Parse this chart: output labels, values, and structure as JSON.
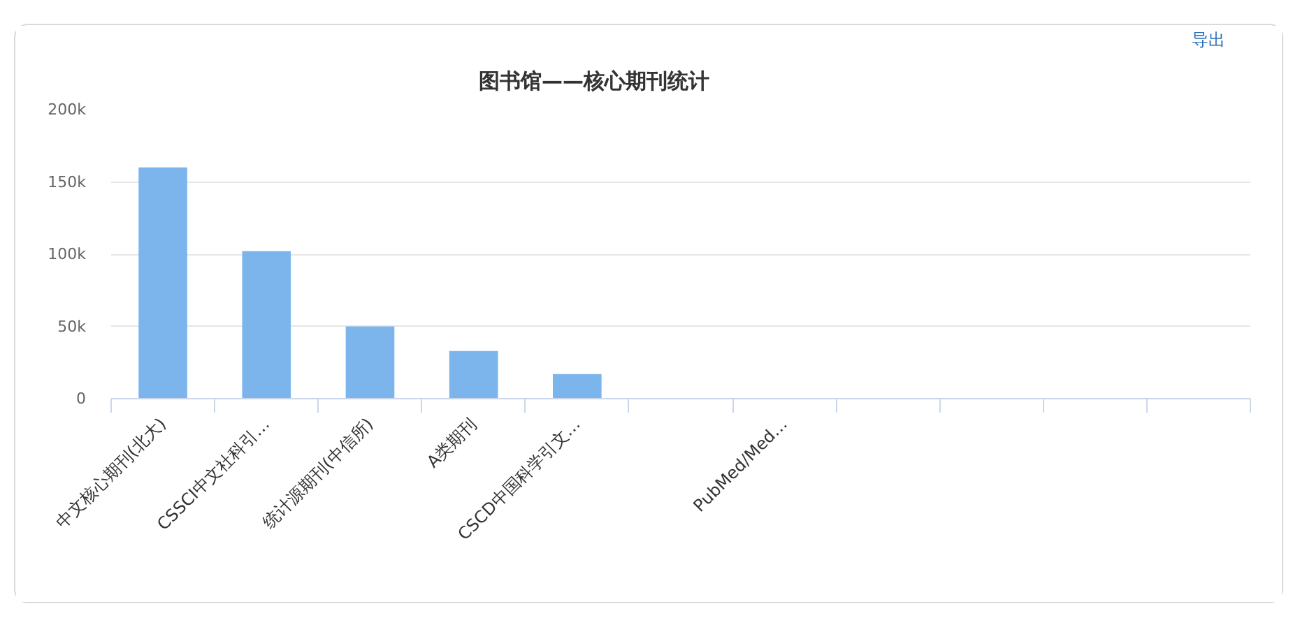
{
  "chart_data": {
    "type": "bar",
    "title": "图书馆——核心期刊统计",
    "categories": [
      "中文核心期刊(北大)",
      "CSSCI中文社科引…",
      "统计源期刊(中信所)",
      "A类期刊",
      "CSCD中国科学引文…",
      null,
      "PubMed/Med…",
      null,
      null,
      null,
      null
    ],
    "values": [
      160000,
      102000,
      50000,
      33000,
      17000,
      0,
      0,
      0,
      0,
      0,
      0
    ],
    "color": "#7cb5ec",
    "ylim": [
      0,
      200000
    ],
    "yticks": [
      0,
      {
        "value": 50000,
        "label": "50k"
      },
      {
        "value": 100000,
        "label": "100k"
      },
      {
        "value": 150000,
        "label": "150k"
      },
      {
        "value": 200000,
        "label": "200k"
      }
    ],
    "grid": "y",
    "annotations": [
      "导出"
    ]
  }
}
